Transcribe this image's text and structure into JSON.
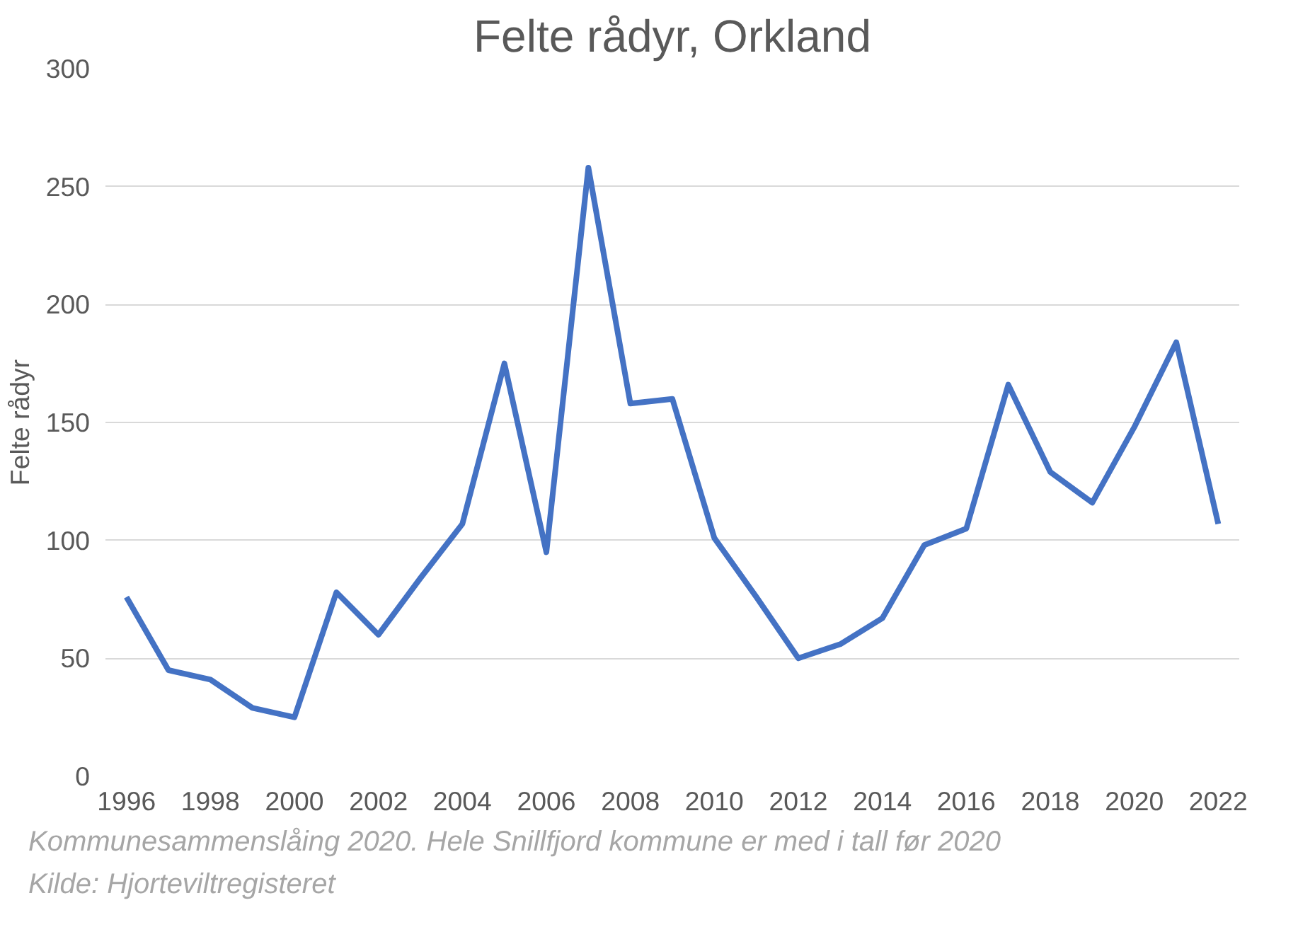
{
  "chart_data": {
    "type": "line",
    "title": "Felte rådyr, Orkland",
    "ylabel": "Felte rådyr",
    "x": [
      1996,
      1997,
      1998,
      1999,
      2000,
      2001,
      2002,
      2003,
      2004,
      2005,
      2006,
      2007,
      2008,
      2009,
      2010,
      2011,
      2012,
      2013,
      2014,
      2015,
      2016,
      2017,
      2018,
      2019,
      2020,
      2021,
      2022
    ],
    "series": [
      {
        "color": "#4472c4",
        "values": [
          76,
          45,
          41,
          29,
          25,
          78,
          60,
          84,
          107,
          175,
          95,
          258,
          158,
          160,
          101,
          76,
          50,
          56,
          67,
          98,
          105,
          166,
          129,
          116,
          148,
          184,
          107
        ]
      }
    ],
    "xlim": [
      1995.5,
      2022.5
    ],
    "xticks": [
      1996,
      1998,
      2000,
      2002,
      2004,
      2006,
      2008,
      2010,
      2012,
      2014,
      2016,
      2018,
      2020,
      2022
    ],
    "ylim": [
      0,
      300
    ],
    "yticks": [
      0,
      50,
      100,
      150,
      200,
      250,
      300
    ],
    "grid": "y",
    "marker": "none",
    "line_style": "solid",
    "annotations": [
      "Kommunesammenslåing 2020. Hele Snillfjord kommune er med i tall før 2020",
      "Kilde: Hjorteviltregisteret"
    ]
  }
}
